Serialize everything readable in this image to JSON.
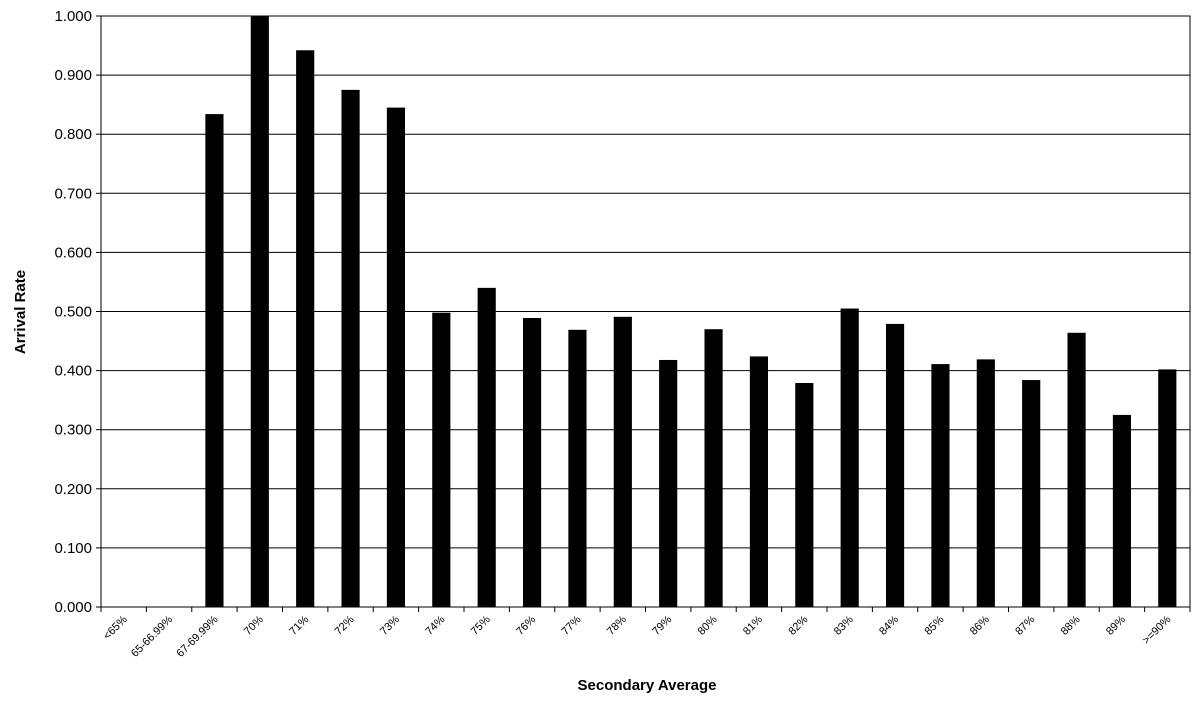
{
  "chart_data": {
    "type": "bar",
    "title": "",
    "xlabel": "Secondary Average",
    "ylabel": "Arrival Rate",
    "ylim": [
      0,
      1
    ],
    "y_ticks": [
      "0.000",
      "0.100",
      "0.200",
      "0.300",
      "0.400",
      "0.500",
      "0.600",
      "0.700",
      "0.800",
      "0.900",
      "1.000"
    ],
    "grid": "horizontal",
    "legend": "none",
    "categories": [
      "<65%",
      "65-66.99%",
      "67-69.99%",
      "70%",
      "71%",
      "72%",
      "73%",
      "74%",
      "75%",
      "76%",
      "77%",
      "78%",
      "79%",
      "80%",
      "81%",
      "82%",
      "83%",
      "84%",
      "85%",
      "86%",
      "87%",
      "88%",
      "89%",
      ">=90%"
    ],
    "values": [
      0,
      0,
      0.834,
      1.0,
      0.942,
      0.875,
      0.845,
      0.498,
      0.54,
      0.489,
      0.469,
      0.491,
      0.418,
      0.47,
      0.424,
      0.379,
      0.505,
      0.479,
      0.411,
      0.419,
      0.384,
      0.464,
      0.325,
      0.402
    ],
    "bar_color": "#000000",
    "grid_color": "#000000"
  }
}
